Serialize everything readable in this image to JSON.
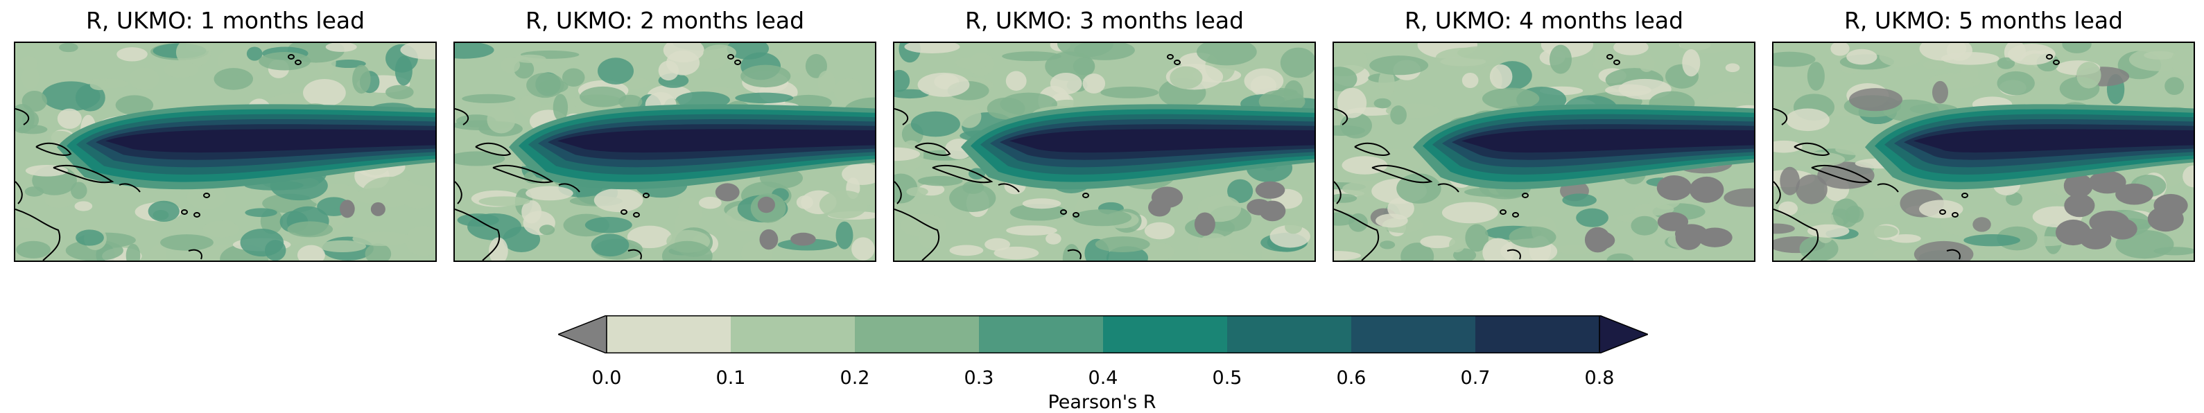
{
  "chart_data": {
    "type": "heatmap",
    "panels": [
      {
        "title": "R, UKMO: 1 months lead",
        "lead_months": 1
      },
      {
        "title": "R, UKMO: 2 months lead",
        "lead_months": 2
      },
      {
        "title": "R, UKMO: 3 months lead",
        "lead_months": 3
      },
      {
        "title": "R, UKMO: 4 months lead",
        "lead_months": 4
      },
      {
        "title": "R, UKMO: 5 months lead",
        "lead_months": 5
      }
    ],
    "colorbar": {
      "label": "Pearson's R",
      "ticks": [
        "0.0",
        "0.1",
        "0.2",
        "0.3",
        "0.4",
        "0.5",
        "0.6",
        "0.7",
        "0.8"
      ],
      "levels": [
        0.0,
        0.1,
        0.2,
        0.3,
        0.4,
        0.5,
        0.6,
        0.7,
        0.8
      ],
      "colors": [
        "#d9ddc9",
        "#abc9a6",
        "#83b38e",
        "#4f9a80",
        "#1a8575",
        "#1f6b6b",
        "#1f4f63",
        "#1c3150"
      ],
      "under_color": "#808080",
      "over_color": "#1a1b42",
      "extend": "both"
    }
  }
}
